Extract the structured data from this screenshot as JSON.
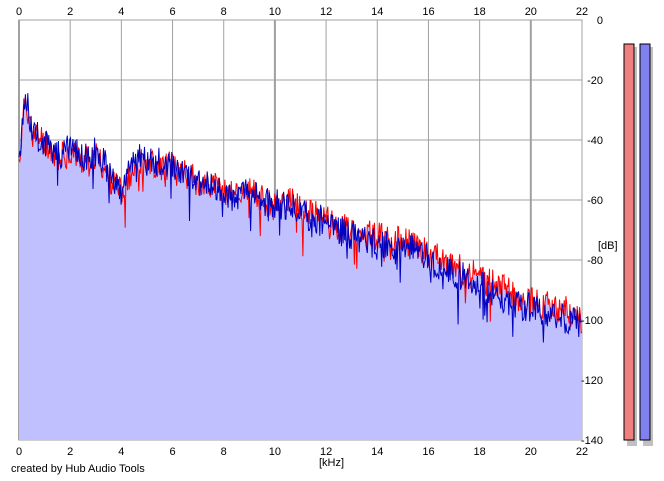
{
  "credit": "created by Hub Audio Tools",
  "colors": {
    "fill": "#c0c0ff",
    "channel_left": "#ff0000",
    "channel_right": "#0000c0",
    "grid": "#a0a0a0",
    "meter_left": "#f08080",
    "meter_right": "#8080f0"
  },
  "chart_data": {
    "type": "line",
    "xlabel": "[kHz]",
    "ylabel": "[dB]",
    "xlim": [
      0,
      22
    ],
    "ylim": [
      -140,
      0
    ],
    "x_ticks": [
      "0",
      "2",
      "4",
      "6",
      "8",
      "10",
      "12",
      "14",
      "16",
      "18",
      "20",
      "22"
    ],
    "y_ticks": [
      "0",
      "-20",
      "-40",
      "-60",
      "-80",
      "-100",
      "-120",
      "-140"
    ],
    "grid": true,
    "x": [
      0,
      0.25,
      0.5,
      1,
      1.5,
      2,
      2.5,
      3,
      3.5,
      4,
      4.5,
      5,
      5.5,
      6,
      6.5,
      7,
      7.5,
      8,
      8.5,
      9,
      9.5,
      10,
      10.5,
      11,
      11.5,
      12,
      12.5,
      13,
      13.5,
      14,
      14.5,
      15,
      15.5,
      16,
      16.5,
      17,
      17.5,
      18,
      18.5,
      19,
      19.5,
      20,
      20.5,
      21,
      21.5,
      22
    ],
    "series": [
      {
        "values": [
          -48,
          -25,
          -38,
          -40,
          -46,
          -44,
          -47,
          -45,
          -52,
          -58,
          -48,
          -47,
          -49,
          -48,
          -51,
          -54,
          -55,
          -57,
          -58,
          -57,
          -60,
          -62,
          -60,
          -63,
          -65,
          -66,
          -69,
          -70,
          -71,
          -72,
          -73,
          -74,
          -75,
          -78,
          -80,
          -82,
          -84,
          -86,
          -88,
          -90,
          -92,
          -93,
          -95,
          -96,
          -97,
          -100
        ]
      },
      {
        "values": [
          -46,
          -24,
          -37,
          -41,
          -45,
          -43,
          -46,
          -44,
          -50,
          -57,
          -44,
          -48,
          -47,
          -49,
          -52,
          -55,
          -56,
          -58,
          -59,
          -56,
          -61,
          -61,
          -62,
          -64,
          -66,
          -67,
          -70,
          -72,
          -73,
          -75,
          -75,
          -77,
          -76,
          -80,
          -82,
          -85,
          -86,
          -88,
          -91,
          -93,
          -95,
          -96,
          -98,
          -99,
          -100,
          -102
        ]
      }
    ]
  }
}
